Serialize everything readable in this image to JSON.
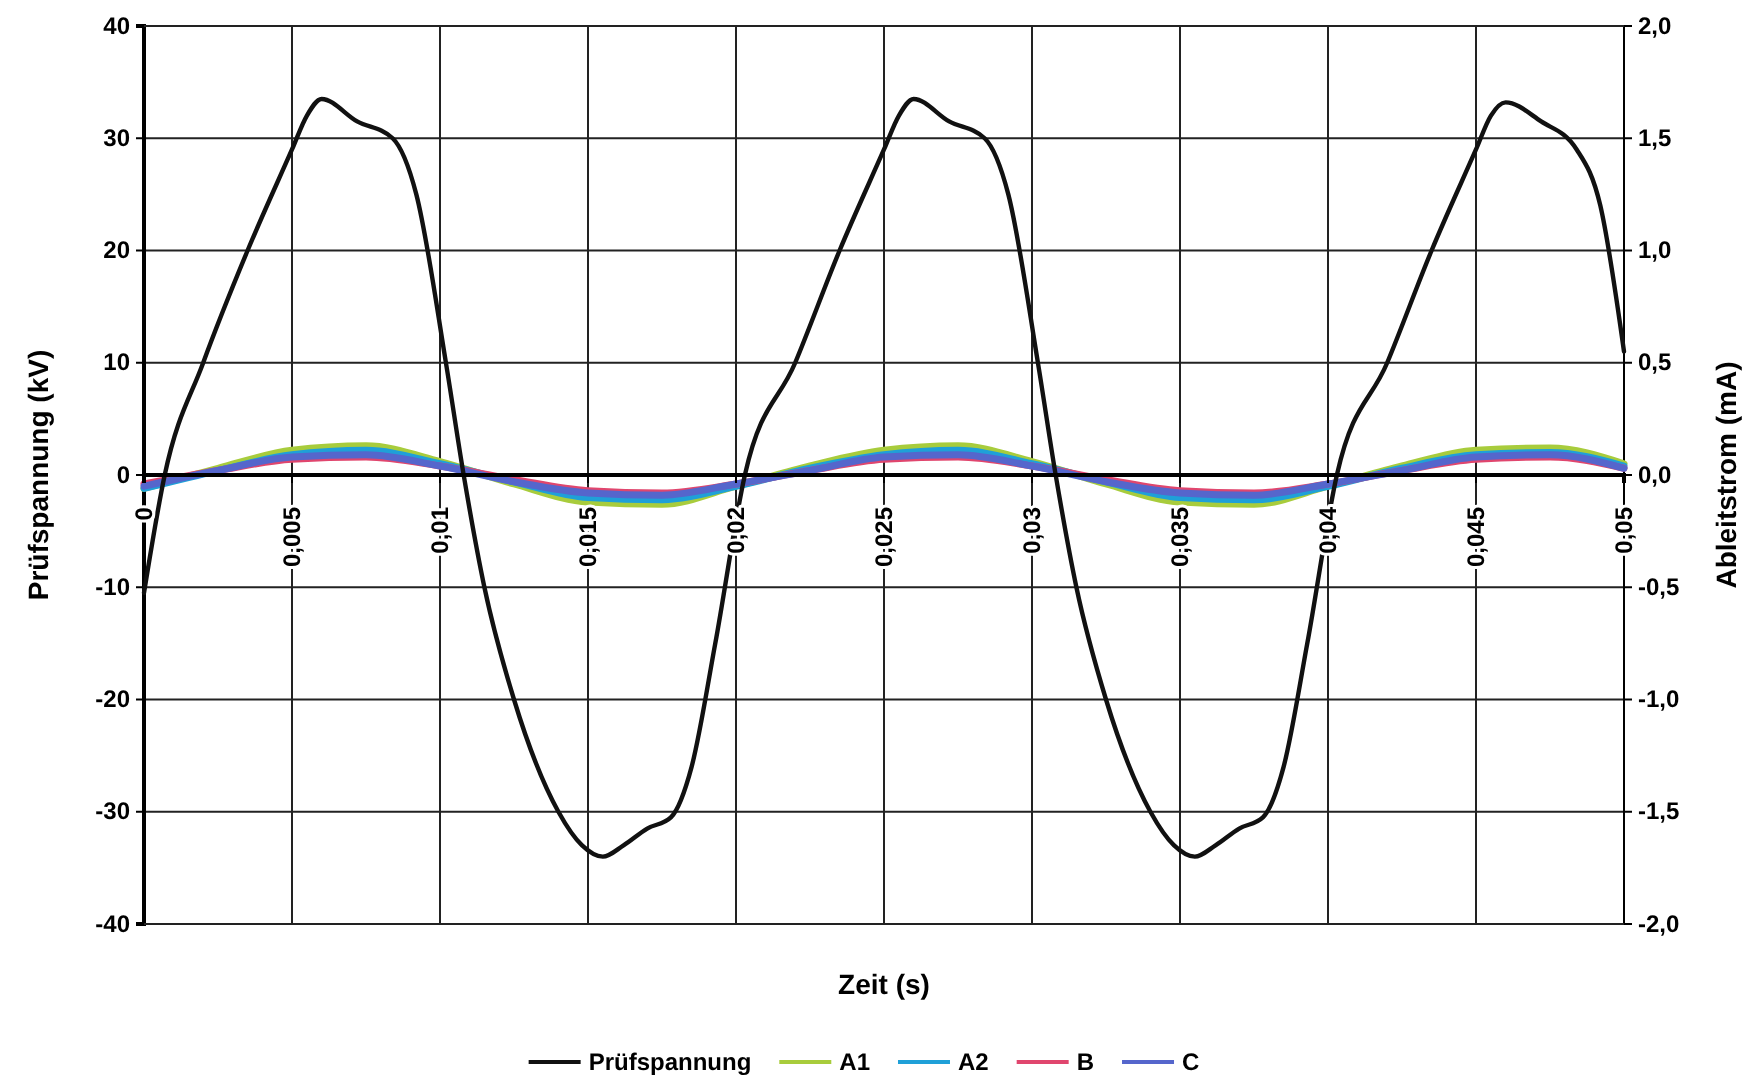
{
  "chart_data": {
    "type": "line",
    "xlabel": "Zeit (s)",
    "ylabel": "Prüfspannung (kV)",
    "y2label": "Ableitstrom (mA)",
    "xlim": [
      0,
      0.05
    ],
    "xticks": [
      {
        "value": 0,
        "label": "0"
      },
      {
        "value": 0.005,
        "label": "0,005"
      },
      {
        "value": 0.01,
        "label": "0,01"
      },
      {
        "value": 0.015,
        "label": "0,015"
      },
      {
        "value": 0.02,
        "label": "0,02"
      },
      {
        "value": 0.025,
        "label": "0,025"
      },
      {
        "value": 0.03,
        "label": "0,03"
      },
      {
        "value": 0.035,
        "label": "0,035"
      },
      {
        "value": 0.04,
        "label": "0,04"
      },
      {
        "value": 0.045,
        "label": "0,045"
      },
      {
        "value": 0.05,
        "label": "0,05"
      }
    ],
    "ylim": [
      -40,
      40
    ],
    "yticks": [
      -40,
      -30,
      -20,
      -10,
      0,
      10,
      20,
      30,
      40
    ],
    "y2lim": [
      -2,
      2
    ],
    "y2ticks": [
      {
        "value": -2,
        "label": "-2,0"
      },
      {
        "value": -1.5,
        "label": "-1,5"
      },
      {
        "value": -1,
        "label": "-1,0"
      },
      {
        "value": -0.5,
        "label": "-0,5"
      },
      {
        "value": 0,
        "label": "0,0"
      },
      {
        "value": 0.5,
        "label": "0,5"
      },
      {
        "value": 1,
        "label": "1,0"
      },
      {
        "value": 1.5,
        "label": "1,5"
      },
      {
        "value": 2,
        "label": "2,0"
      }
    ],
    "grid": true,
    "legend": "bottom",
    "marker": "none",
    "line_style": "solid",
    "series": [
      {
        "name": "Prüfspannung",
        "color": "#111111",
        "x": [
          0,
          0.0007,
          0.002,
          0.0035,
          0.005,
          0.0055,
          0.006,
          0.0072,
          0.0084,
          0.0092,
          0.0102,
          0.0108,
          0.0115,
          0.0125,
          0.014,
          0.0148,
          0.0155,
          0.0162,
          0.017,
          0.0178,
          0.0185,
          0.0193,
          0.0203,
          0.022,
          0.0235,
          0.025,
          0.0255,
          0.026,
          0.0272,
          0.0284,
          0.0292,
          0.0302,
          0.0308,
          0.0315,
          0.0325,
          0.034,
          0.0348,
          0.0355,
          0.0362,
          0.037,
          0.0378,
          0.0385,
          0.0393,
          0.0403,
          0.042,
          0.0435,
          0.045,
          0.0455,
          0.046,
          0.0472,
          0.0484,
          0.0492,
          0.05
        ],
        "values": [
          -10.5,
          0,
          10,
          20,
          29,
          32,
          33.5,
          31.5,
          30,
          25,
          10,
          0,
          -10,
          -20,
          -30,
          -33,
          -34,
          -33,
          -31.5,
          -30.5,
          -26,
          -15,
          0,
          10,
          20,
          29,
          32,
          33.5,
          31.5,
          30,
          25,
          10,
          0,
          -10,
          -20,
          -30,
          -33,
          -34,
          -33,
          -31.5,
          -30.5,
          -26,
          -15,
          0,
          10,
          20,
          29,
          32,
          33.2,
          31.5,
          29,
          24,
          11
        ]
      },
      {
        "name": "A1",
        "color": "#a8cc3c",
        "axis": "y2",
        "x": [
          0,
          0.0025,
          0.005,
          0.0075,
          0.01,
          0.0125,
          0.015,
          0.0175,
          0.02,
          0.0225,
          0.025,
          0.0275,
          0.03,
          0.0325,
          0.035,
          0.0375,
          0.04,
          0.0425,
          0.045,
          0.0475,
          0.05
        ],
        "values": [
          -0.06,
          0.03,
          0.11,
          0.13,
          0.06,
          -0.04,
          -0.12,
          -0.13,
          -0.05,
          0.04,
          0.11,
          0.13,
          0.06,
          -0.04,
          -0.12,
          -0.13,
          -0.05,
          0.04,
          0.11,
          0.12,
          0.05
        ]
      },
      {
        "name": "A2",
        "color": "#1fa0d8",
        "axis": "y2",
        "x": [
          0,
          0.0025,
          0.005,
          0.0075,
          0.01,
          0.0125,
          0.015,
          0.0175,
          0.02,
          0.0225,
          0.025,
          0.0275,
          0.03,
          0.0325,
          0.035,
          0.0375,
          0.04,
          0.0425,
          0.045,
          0.0475,
          0.05
        ],
        "values": [
          -0.06,
          0.02,
          0.09,
          0.11,
          0.05,
          -0.03,
          -0.1,
          -0.11,
          -0.05,
          0.03,
          0.09,
          0.11,
          0.05,
          -0.03,
          -0.1,
          -0.11,
          -0.05,
          0.03,
          0.09,
          0.1,
          0.04
        ]
      },
      {
        "name": "B",
        "color": "#e0466e",
        "axis": "y2",
        "x": [
          0,
          0.0025,
          0.005,
          0.0075,
          0.01,
          0.0125,
          0.015,
          0.0175,
          0.02,
          0.0225,
          0.025,
          0.0275,
          0.03,
          0.0325,
          0.035,
          0.0375,
          0.04,
          0.0425,
          0.045,
          0.0475,
          0.05
        ],
        "values": [
          -0.04,
          0.02,
          0.07,
          0.08,
          0.04,
          -0.02,
          -0.07,
          -0.08,
          -0.04,
          0.02,
          0.07,
          0.08,
          0.04,
          -0.02,
          -0.07,
          -0.08,
          -0.04,
          0.02,
          0.07,
          0.08,
          0.03
        ]
      },
      {
        "name": "C",
        "color": "#5566cc",
        "axis": "y2",
        "x": [
          0,
          0.0025,
          0.005,
          0.0075,
          0.01,
          0.0125,
          0.015,
          0.0175,
          0.02,
          0.0225,
          0.025,
          0.0275,
          0.03,
          0.0325,
          0.035,
          0.0375,
          0.04,
          0.0425,
          0.045,
          0.0475,
          0.05
        ],
        "values": [
          -0.05,
          0.02,
          0.08,
          0.09,
          0.04,
          -0.03,
          -0.08,
          -0.09,
          -0.04,
          0.02,
          0.08,
          0.09,
          0.04,
          -0.03,
          -0.08,
          -0.09,
          -0.04,
          0.02,
          0.08,
          0.09,
          0.03
        ]
      }
    ]
  }
}
